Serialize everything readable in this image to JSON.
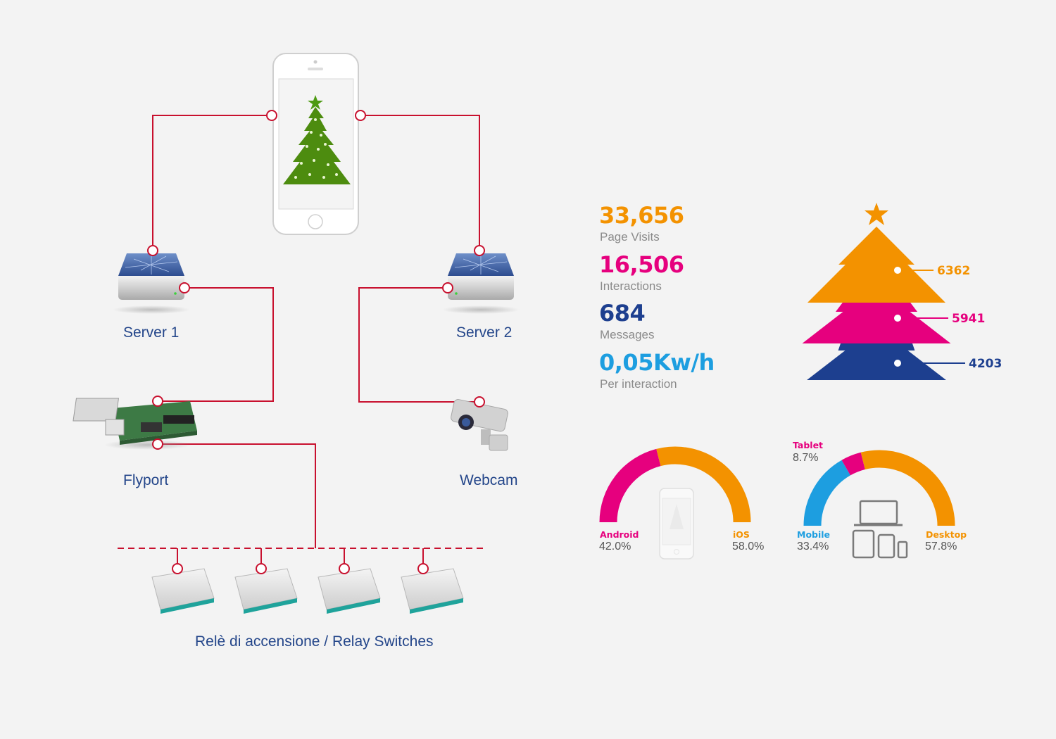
{
  "diagram": {
    "devices": {
      "server1": "Server 1",
      "server2": "Server 2",
      "flyport": "Flyport",
      "webcam": "Webcam",
      "relays": "Relè di accensione / Relay Switches"
    },
    "line_color": "#c8102e"
  },
  "stats": [
    {
      "value": "33,656",
      "label": "Page Visits",
      "color": "#f39200"
    },
    {
      "value": "16,506",
      "label": "Interactions",
      "color": "#e6007e"
    },
    {
      "value": "684",
      "label": "Messages",
      "color": "#1d3f8f"
    },
    {
      "value": "0,05Kw/h",
      "label": "Per interaction",
      "color": "#1d9ee0"
    }
  ],
  "chart_data": [
    {
      "type": "bar",
      "categories": [
        "orange tier",
        "magenta tier",
        "blue tier"
      ],
      "values": [
        6362,
        5941,
        4203
      ],
      "colors": [
        "#f39200",
        "#e6007e",
        "#1d3f8f"
      ]
    },
    {
      "type": "pie",
      "labels": [
        "Android",
        "iOS"
      ],
      "values": [
        42.0,
        58.0
      ],
      "value_labels": [
        "42.0%",
        "58.0%"
      ],
      "colors": [
        "#e6007e",
        "#f39200"
      ]
    },
    {
      "type": "pie",
      "labels": [
        "Mobile",
        "Tablet",
        "Desktop"
      ],
      "values": [
        33.4,
        8.7,
        57.8
      ],
      "value_labels": [
        "33.4%",
        "8.7%",
        "57.8%"
      ],
      "colors": [
        "#1d9ee0",
        "#e6007e",
        "#f39200"
      ]
    }
  ]
}
